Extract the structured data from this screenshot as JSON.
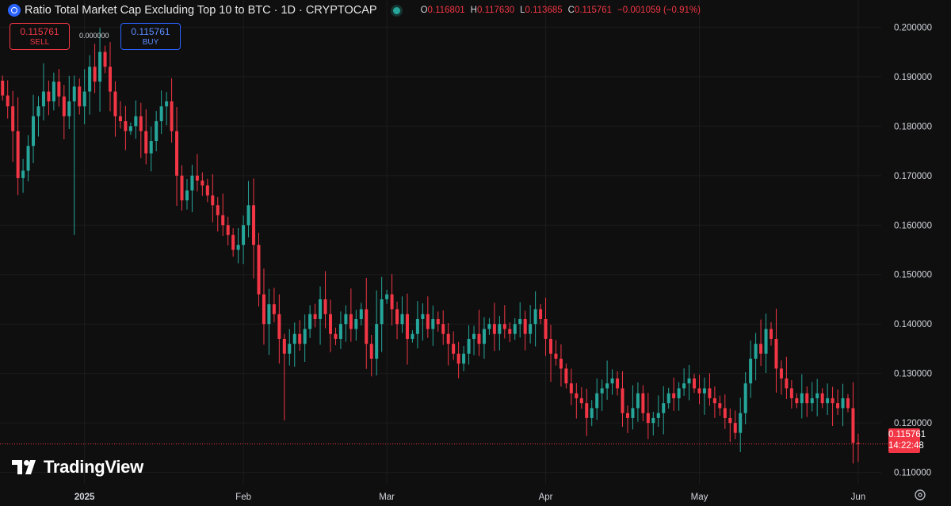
{
  "header": {
    "title": "Ratio Total Market Cap Excluding Top 10 to BTC · 1D · CRYPTOCAP",
    "open_label": "O",
    "open": "0.116801",
    "high_label": "H",
    "high": "0.117630",
    "low_label": "L",
    "low": "0.113685",
    "close_label": "C",
    "close": "0.115761",
    "change": "−0.001059 (−0.91%)"
  },
  "trade": {
    "sell_price": "0.115761",
    "sell_label": "SELL",
    "spread": "0.000000",
    "buy_price": "0.115761",
    "buy_label": "BUY"
  },
  "last_price": {
    "price": "0.115761",
    "countdown": "14:22:48"
  },
  "brand": {
    "name": "TradingView"
  },
  "colors": {
    "up": "#26a69a",
    "down": "#f23645",
    "background": "#0f0f0f",
    "accent": "#2962ff"
  },
  "chart_data": {
    "type": "candlestick",
    "title": "Ratio Total Market Cap Excluding Top 10 to BTC · 1D · CRYPTOCAP",
    "x_tick_labels": [
      "2025",
      "Feb",
      "Mar",
      "Apr",
      "May",
      "Jun"
    ],
    "y_tick_labels": [
      "0.200000",
      "0.190000",
      "0.180000",
      "0.170000",
      "0.160000",
      "0.150000",
      "0.140000",
      "0.130000",
      "0.120000",
      "0.110000"
    ],
    "y_ticks": [
      0.2,
      0.19,
      0.18,
      0.17,
      0.16,
      0.15,
      0.14,
      0.13,
      0.12,
      0.11
    ],
    "ylim": [
      0.1077,
      0.2055
    ],
    "x_range_days": [
      -16.5,
      155.5
    ],
    "x_ticks_day": [
      0,
      31,
      59,
      90,
      120,
      151
    ],
    "day_zero": "2025-01-01",
    "grid": true,
    "last_price_line": 0.115761,
    "closes": [
      0.1862,
      0.184,
      0.179,
      0.1695,
      0.171,
      0.176,
      0.182,
      0.184,
      0.187,
      0.185,
      0.189,
      0.186,
      0.182,
      0.185,
      0.188,
      0.184,
      0.187,
      0.192,
      0.189,
      0.195,
      0.192,
      0.187,
      0.182,
      0.181,
      0.179,
      0.18,
      0.182,
      0.179,
      0.1745,
      0.177,
      0.181,
      0.184,
      0.185,
      0.179,
      0.17,
      0.165,
      0.167,
      0.17,
      0.169,
      0.168,
      0.166,
      0.164,
      0.162,
      0.16,
      0.158,
      0.155,
      0.156,
      0.16,
      0.164,
      0.156,
      0.146,
      0.14,
      0.144,
      0.142,
      0.137,
      0.134,
      0.136,
      0.138,
      0.136,
      0.139,
      0.142,
      0.141,
      0.145,
      0.142,
      0.138,
      0.137,
      0.14,
      0.142,
      0.139,
      0.141,
      0.143,
      0.136,
      0.133,
      0.14,
      0.145,
      0.146,
      0.143,
      0.14,
      0.142,
      0.137,
      0.138,
      0.141,
      0.142,
      0.139,
      0.141,
      0.14,
      0.138,
      0.136,
      0.134,
      0.132,
      0.134,
      0.137,
      0.138,
      0.136,
      0.139,
      0.14,
      0.138,
      0.14,
      0.139,
      0.138,
      0.14,
      0.141,
      0.138,
      0.14,
      0.143,
      0.141,
      0.137,
      0.134,
      0.133,
      0.131,
      0.128,
      0.126,
      0.125,
      0.124,
      0.121,
      0.123,
      0.126,
      0.127,
      0.128,
      0.129,
      0.127,
      0.122,
      0.121,
      0.123,
      0.126,
      0.122,
      0.12,
      0.121,
      0.122,
      0.124,
      0.126,
      0.125,
      0.127,
      0.128,
      0.129,
      0.127,
      0.126,
      0.127,
      0.125,
      0.124,
      0.123,
      0.121,
      0.12,
      0.118,
      0.122,
      0.128,
      0.133,
      0.136,
      0.134,
      0.139,
      0.137,
      0.131,
      0.129,
      0.127,
      0.125,
      0.124,
      0.126,
      0.124,
      0.125,
      0.126,
      0.124,
      0.125,
      0.124,
      0.123,
      0.125,
      0.123,
      0.116,
      0.1158
    ]
  }
}
